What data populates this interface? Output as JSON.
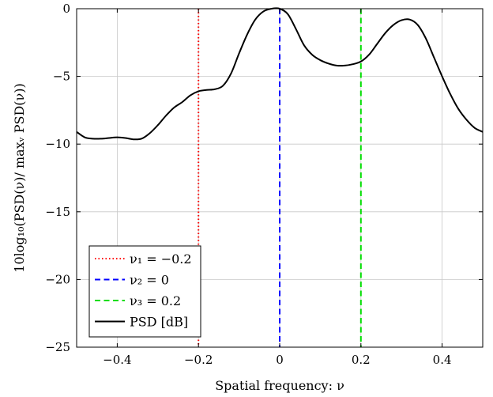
{
  "chart_data": {
    "type": "line",
    "title": "",
    "xlabel": "Spatial frequency: ν",
    "ylabel": "10log₁₀(PSD(ν)/ maxᵥ PSD(ν))",
    "xlim": [
      -0.5,
      0.5
    ],
    "ylim": [
      -25,
      0
    ],
    "grid": true,
    "legend_position": "bottom-left",
    "x_ticks": [
      -0.4,
      -0.2,
      0,
      0.2,
      0.4
    ],
    "x_tick_labels": [
      "−0.4",
      "−0.2",
      "0",
      "0.2",
      "0.4"
    ],
    "y_ticks": [
      0,
      -5,
      -10,
      -15,
      -20,
      -25
    ],
    "y_tick_labels": [
      "0",
      "−5",
      "−10",
      "−15",
      "−20",
      "−25"
    ],
    "vertical_lines": [
      {
        "name": "ν₁ = −0.2",
        "x": -0.2,
        "color": "#ff0000",
        "style": "dotted"
      },
      {
        "name": "ν₂ = 0",
        "x": 0,
        "color": "#0000ff",
        "style": "dashed"
      },
      {
        "name": "ν₃ = 0.2",
        "x": 0.2,
        "color": "#00dd00",
        "style": "dashed"
      }
    ],
    "series": [
      {
        "name": "PSD [dB]",
        "color": "#000000",
        "x": [
          -0.5,
          -0.48,
          -0.46,
          -0.44,
          -0.42,
          -0.4,
          -0.38,
          -0.36,
          -0.34,
          -0.32,
          -0.3,
          -0.28,
          -0.26,
          -0.24,
          -0.22,
          -0.2,
          -0.18,
          -0.16,
          -0.14,
          -0.12,
          -0.1,
          -0.08,
          -0.06,
          -0.04,
          -0.02,
          0.0,
          0.02,
          0.04,
          0.06,
          0.08,
          0.1,
          0.12,
          0.14,
          0.16,
          0.18,
          0.2,
          0.22,
          0.24,
          0.26,
          0.28,
          0.3,
          0.32,
          0.34,
          0.36,
          0.38,
          0.4,
          0.42,
          0.44,
          0.46,
          0.48,
          0.5
        ],
        "y": [
          -9.1,
          -9.5,
          -9.6,
          -9.6,
          -9.55,
          -9.5,
          -9.55,
          -9.65,
          -9.6,
          -9.2,
          -8.6,
          -7.9,
          -7.3,
          -6.9,
          -6.4,
          -6.1,
          -6.0,
          -5.95,
          -5.7,
          -4.8,
          -3.3,
          -1.9,
          -0.8,
          -0.2,
          0.0,
          0.0,
          -0.4,
          -1.5,
          -2.7,
          -3.4,
          -3.8,
          -4.05,
          -4.2,
          -4.2,
          -4.1,
          -3.9,
          -3.4,
          -2.6,
          -1.8,
          -1.2,
          -0.85,
          -0.8,
          -1.2,
          -2.2,
          -3.6,
          -5.0,
          -6.3,
          -7.4,
          -8.2,
          -8.8,
          -9.1
        ]
      }
    ]
  }
}
